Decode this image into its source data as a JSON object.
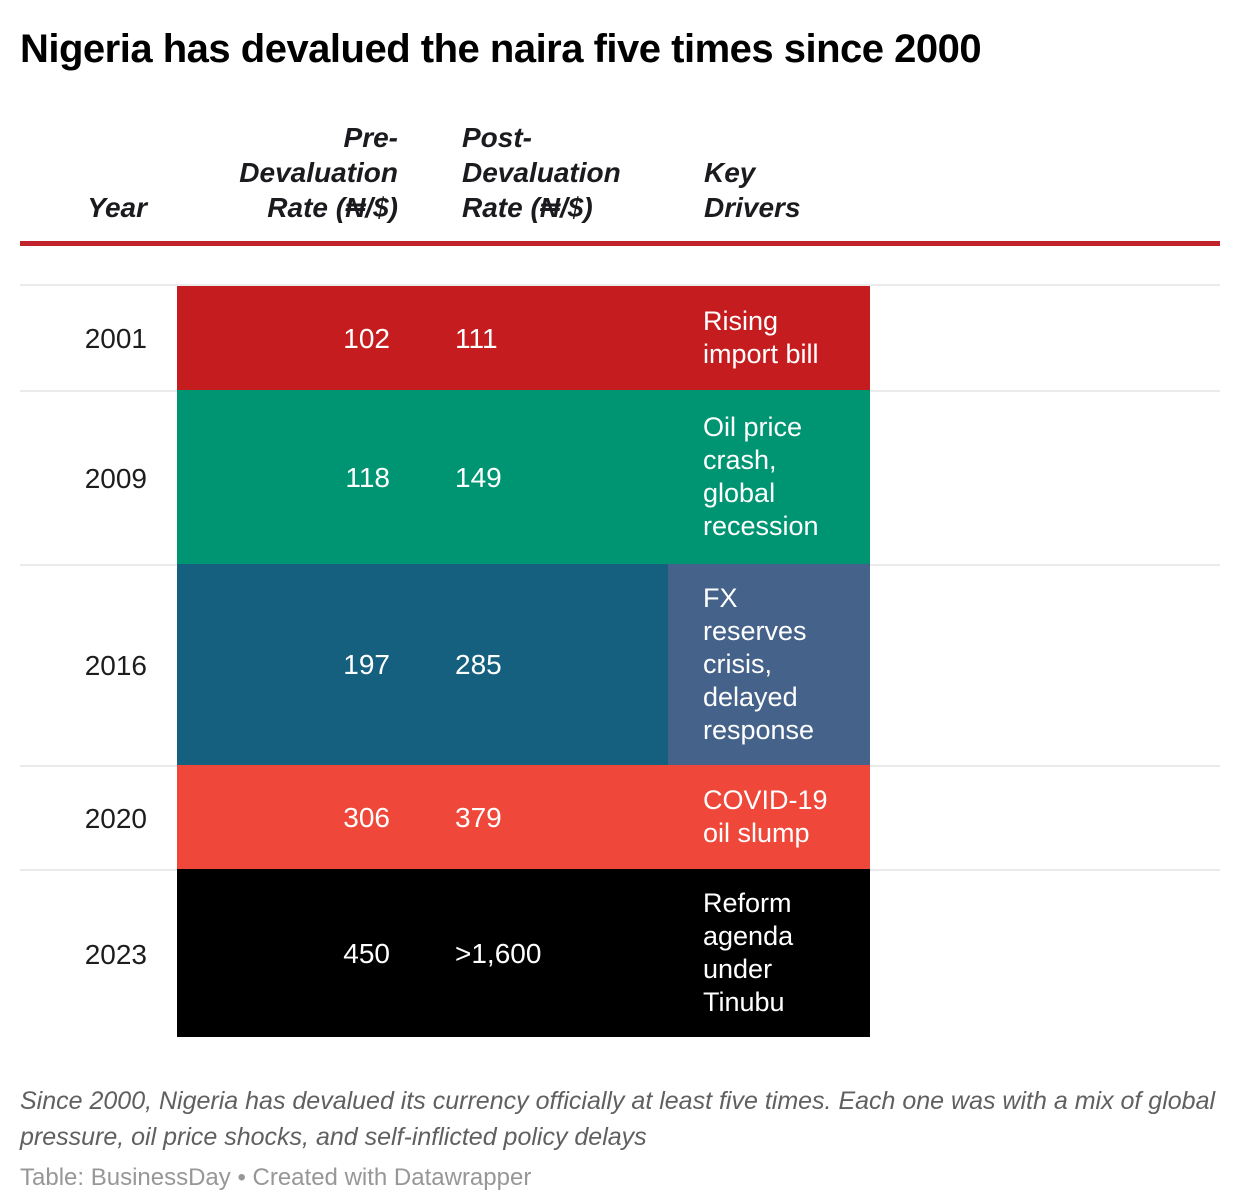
{
  "title": "Nigeria has devalued the naira five times since 2000",
  "header": {
    "year": "Year",
    "pre": "Pre-\nDevaluation\nRate (₦/$)",
    "post": "Post-\nDevaluation\nRate (₦/$)",
    "key": "Key\nDrivers"
  },
  "rows": [
    {
      "year": "2001",
      "pre": "102",
      "post": "111",
      "key": "Rising\nimport bill",
      "bg": "#c51d1f",
      "key_bg": "#c51d1f"
    },
    {
      "year": "2009",
      "pre": "118",
      "post": "149",
      "key": "Oil price\ncrash,\nglobal\nrecession",
      "bg": "#009572",
      "key_bg": "#009572"
    },
    {
      "year": "2016",
      "pre": "197",
      "post": "285",
      "key": "FX\nreserves\ncrisis,\ndelayed\nresponse",
      "bg": "#15607e",
      "key_bg": "#44628a"
    },
    {
      "year": "2020",
      "pre": "306",
      "post": "379",
      "key": "COVID-19\noil slump",
      "bg": "#ef4739",
      "key_bg": "#ef4739"
    },
    {
      "year": "2023",
      "pre": "450",
      "post": ">1,600",
      "key": "Reform\nagenda\nunder\nTinubu",
      "bg": "#000000",
      "key_bg": "#000000"
    }
  ],
  "notes": "Since 2000, Nigeria has devalued its currency officially at least five times. Each one was with a mix of global\npressure, oil price shocks, and self-inflicted policy delays",
  "credit": "Table: BusinessDay • Created with Datawrapper",
  "colors": {
    "header_rule": "#c0232b",
    "row_separator": "#ebebeb",
    "row_2001": "#c51d1f",
    "row_2009": "#009572",
    "row_2016": "#15607e",
    "row_2016_key_cell": "#44628a",
    "row_2020": "#ef4739",
    "row_2023": "#000000"
  },
  "chart_data": {
    "type": "table",
    "title": "Nigeria has devalued the naira five times since 2000",
    "columns": [
      "Year",
      "Pre-Devaluation Rate (₦/$)",
      "Post-Devaluation Rate (₦/$)",
      "Key Drivers"
    ],
    "rows": [
      {
        "year": 2001,
        "pre_devaluation_rate": 102,
        "post_devaluation_rate": 111,
        "key_drivers": "Rising import bill"
      },
      {
        "year": 2009,
        "pre_devaluation_rate": 118,
        "post_devaluation_rate": 149,
        "key_drivers": "Oil price crash, global recession"
      },
      {
        "year": 2016,
        "pre_devaluation_rate": 197,
        "post_devaluation_rate": 285,
        "key_drivers": "FX reserves crisis, delayed response"
      },
      {
        "year": 2020,
        "pre_devaluation_rate": 306,
        "post_devaluation_rate": 379,
        "key_drivers": "COVID-19 oil slump"
      },
      {
        "year": 2023,
        "pre_devaluation_rate": 450,
        "post_devaluation_rate": ">1,600",
        "key_drivers": "Reform agenda under Tinubu"
      }
    ],
    "notes": "Since 2000, Nigeria has devalued its currency officially at least five times. Each one was with a mix of global pressure, oil price shocks, and self-inflicted policy delays",
    "source": "Table: BusinessDay • Created with Datawrapper"
  }
}
